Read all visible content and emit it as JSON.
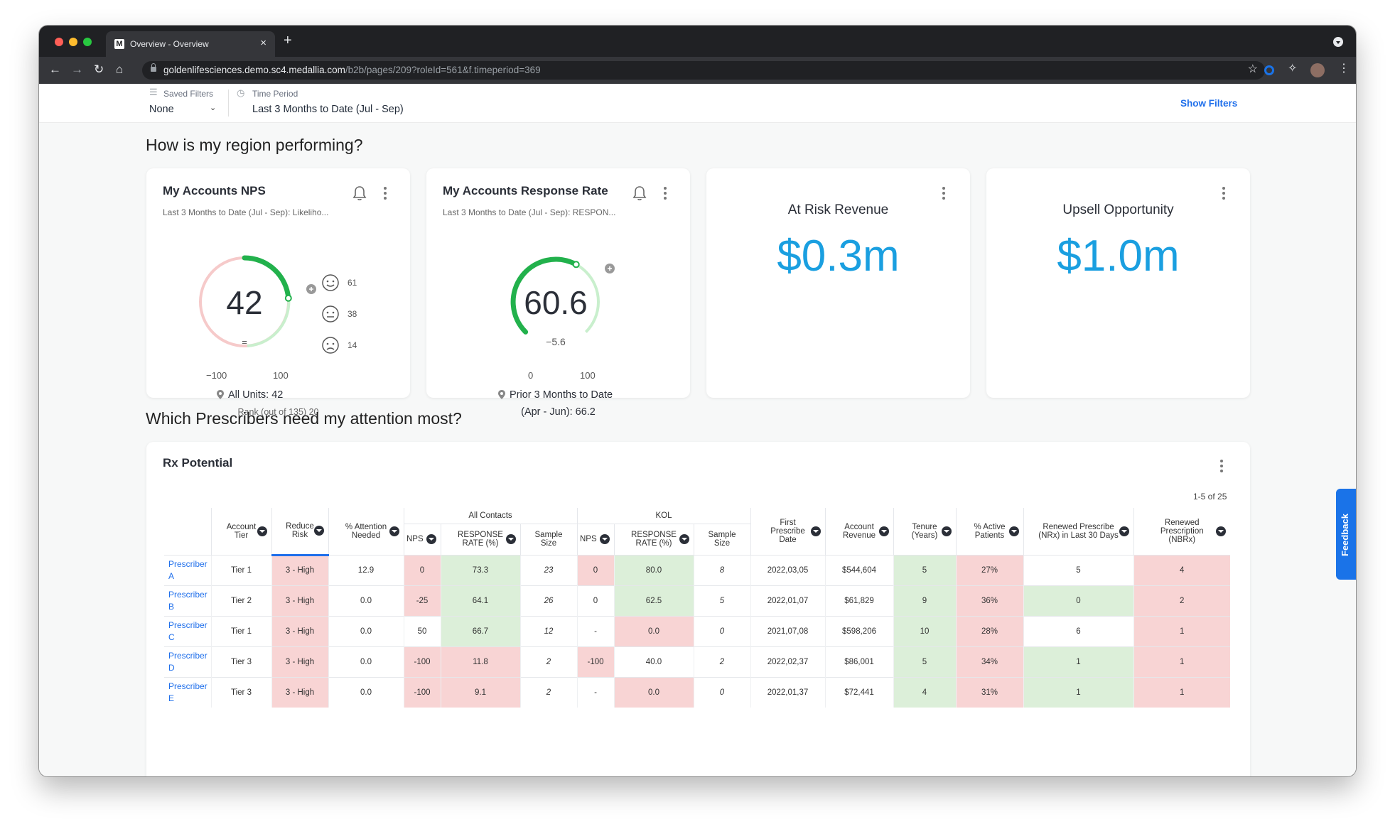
{
  "browser": {
    "tab_title": "Overview - Overview",
    "tab_close": "×",
    "new_tab": "+",
    "favicon_letter": "M",
    "url_host": "goldenlifesciences.demo.sc4.medallia.com",
    "url_path": "/b2b/pages/209?roleId=561&f.timeperiod=369"
  },
  "filters": {
    "saved_filters_label": "Saved Filters",
    "saved_filters_value": "None",
    "time_period_label": "Time Period",
    "time_period_value": "Last 3 Months to Date (Jul - Sep)",
    "show_filters": "Show Filters"
  },
  "section1_title": "How is my region performing?",
  "section2_title": "Which Prescribers need my attention most?",
  "nps_card": {
    "title": "My Accounts NPS",
    "subtitle": "Last 3 Months to Date (Jul - Sep): Likeliho...",
    "value": "42",
    "delta": "=",
    "scale_min": "−100",
    "scale_max": "100",
    "promoters": "61",
    "passives": "38",
    "detractors": "14",
    "benchmark": "All Units: 42",
    "rank": "Rank (out of 135) 20",
    "gauge_fraction": 0.71
  },
  "rr_card": {
    "title": "My Accounts Response Rate",
    "subtitle": "Last 3 Months to Date (Jul - Sep): RESPON...",
    "value": "60.6",
    "delta": "−5.6",
    "scale_min": "0",
    "scale_max": "100",
    "prior_line1": "Prior 3 Months to Date",
    "prior_line2": "(Apr - Jun): 66.2",
    "gauge_fraction": 0.606
  },
  "risk_card": {
    "title": "At Risk Revenue",
    "value": "$0.3m"
  },
  "upsell_card": {
    "title": "Upsell Opportunity",
    "value": "$1.0m"
  },
  "rx": {
    "title": "Rx Potential",
    "paging": "1-5 of 25",
    "group_all_contacts": "All Contacts",
    "group_kol": "KOL",
    "headers": {
      "tier": "Account Tier",
      "reduce": "Reduce Risk",
      "attention": "% Attention Needed",
      "nps": "NPS",
      "resp": "RESPONSE RATE (%)",
      "sample": "Sample Size",
      "kol_nps": "NPS",
      "kol_resp": "RESPONSE RATE (%)",
      "kol_sample": "Sample Size",
      "first": "First Prescribe Date",
      "revenue": "Account Revenue",
      "tenure": "Tenure (Years)",
      "active": "% Active Patients",
      "renewed30": "Renewed Prescribe (NRx) in Last 30 Days",
      "renewedrx": "Renewed Prescription (NBRx)"
    },
    "rows": [
      {
        "name": "Prescriber A",
        "tier": "Tier 1",
        "reduce": "3 - High",
        "attention": "12.9",
        "nps": "0",
        "resp": "73.3",
        "sample": "23",
        "kol_nps": "0",
        "kol_resp": "80.0",
        "kol_sample": "8",
        "first": "2022,03,05",
        "revenue": "$544,604",
        "tenure": "5",
        "active": "27%",
        "renewed30": "5",
        "renewedrx": "4"
      },
      {
        "name": "Prescriber B",
        "tier": "Tier 2",
        "reduce": "3 - High",
        "attention": "0.0",
        "nps": "-25",
        "resp": "64.1",
        "sample": "26",
        "kol_nps": "0",
        "kol_resp": "62.5",
        "kol_sample": "5",
        "first": "2022,01,07",
        "revenue": "$61,829",
        "tenure": "9",
        "active": "36%",
        "renewed30": "0",
        "renewedrx": "2"
      },
      {
        "name": "Prescriber C",
        "tier": "Tier 1",
        "reduce": "3 - High",
        "attention": "0.0",
        "nps": "50",
        "resp": "66.7",
        "sample": "12",
        "kol_nps": "-",
        "kol_resp": "0.0",
        "kol_sample": "0",
        "first": "2021,07,08",
        "revenue": "$598,206",
        "tenure": "10",
        "active": "28%",
        "renewed30": "6",
        "renewedrx": "1"
      },
      {
        "name": "Prescriber D",
        "tier": "Tier 3",
        "reduce": "3 - High",
        "attention": "0.0",
        "nps": "-100",
        "resp": "11.8",
        "sample": "2",
        "kol_nps": "-100",
        "kol_resp": "40.0",
        "kol_sample": "2",
        "first": "2022,02,37",
        "revenue": "$86,001",
        "tenure": "5",
        "active": "34%",
        "renewed30": "1",
        "renewedrx": "1"
      },
      {
        "name": "Prescriber E",
        "tier": "Tier 3",
        "reduce": "3 - High",
        "attention": "0.0",
        "nps": "-100",
        "resp": "9.1",
        "sample": "2",
        "kol_nps": "-",
        "kol_resp": "0.0",
        "kol_sample": "0",
        "first": "2022,01,37",
        "revenue": "$72,441",
        "tenure": "4",
        "active": "31%",
        "renewed30": "1",
        "renewedrx": "1"
      }
    ]
  },
  "feedback_label": "Feedback",
  "colors": {
    "accent": "#1f6feb",
    "big_value": "#1a9fe0",
    "good": "#dcefd9",
    "bad": "#f8d4d4",
    "gauge_green": "#22b14c"
  }
}
